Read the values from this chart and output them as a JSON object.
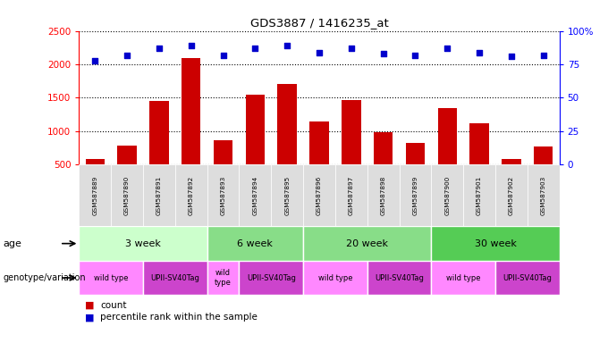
{
  "title": "GDS3887 / 1416235_at",
  "samples": [
    "GSM587889",
    "GSM587890",
    "GSM587891",
    "GSM587892",
    "GSM587893",
    "GSM587894",
    "GSM587895",
    "GSM587896",
    "GSM587897",
    "GSM587898",
    "GSM587899",
    "GSM587900",
    "GSM587901",
    "GSM587902",
    "GSM587903"
  ],
  "counts": [
    580,
    790,
    1450,
    2090,
    860,
    1540,
    1700,
    1140,
    1460,
    980,
    830,
    1340,
    1120,
    580,
    770
  ],
  "percentiles": [
    78,
    82,
    87,
    89,
    82,
    87,
    89,
    84,
    87,
    83,
    82,
    87,
    84,
    81,
    82
  ],
  "age_groups": [
    {
      "label": "3 week",
      "start": 0,
      "end": 4,
      "color": "#ccffcc"
    },
    {
      "label": "6 week",
      "start": 4,
      "end": 7,
      "color": "#88dd88"
    },
    {
      "label": "20 week",
      "start": 7,
      "end": 11,
      "color": "#88dd88"
    },
    {
      "label": "30 week",
      "start": 11,
      "end": 15,
      "color": "#55cc55"
    }
  ],
  "genotype_groups": [
    {
      "label": "wild type",
      "start": 0,
      "end": 2,
      "color": "#ff88ff"
    },
    {
      "label": "UPII-SV40Tag",
      "start": 2,
      "end": 4,
      "color": "#cc44cc"
    },
    {
      "label": "wild\ntype",
      "start": 4,
      "end": 5,
      "color": "#ff88ff"
    },
    {
      "label": "UPII-SV40Tag",
      "start": 5,
      "end": 7,
      "color": "#cc44cc"
    },
    {
      "label": "wild type",
      "start": 7,
      "end": 9,
      "color": "#ff88ff"
    },
    {
      "label": "UPII-SV40Tag",
      "start": 9,
      "end": 11,
      "color": "#cc44cc"
    },
    {
      "label": "wild type",
      "start": 11,
      "end": 13,
      "color": "#ff88ff"
    },
    {
      "label": "UPII-SV40Tag",
      "start": 13,
      "end": 15,
      "color": "#cc44cc"
    }
  ],
  "bar_color": "#cc0000",
  "dot_color": "#0000cc",
  "ylim_left": [
    500,
    2500
  ],
  "ylim_right": [
    0,
    100
  ],
  "yticks_left": [
    500,
    1000,
    1500,
    2000,
    2500
  ],
  "yticks_right": [
    0,
    25,
    50,
    75,
    100
  ],
  "sample_box_color": "#dddddd",
  "legend_count_color": "#cc0000",
  "legend_pct_color": "#0000cc"
}
